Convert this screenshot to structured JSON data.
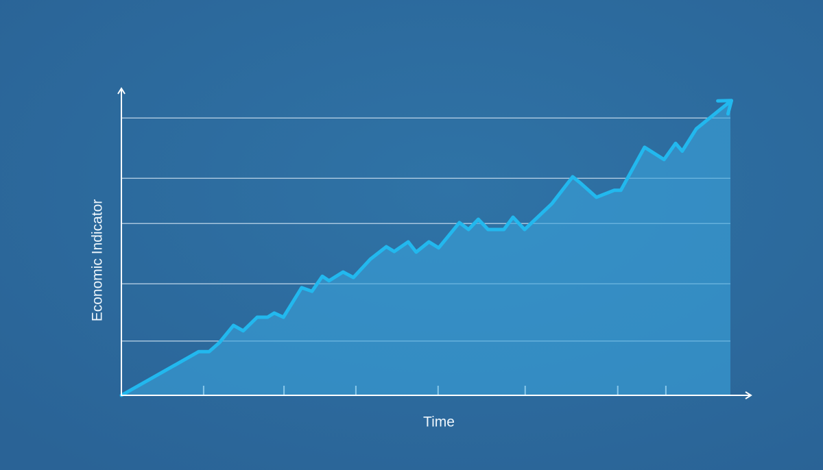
{
  "chart_data": {
    "type": "area",
    "xlabel": "Time",
    "ylabel": "Economic Indicator",
    "x": [
      0,
      12.7,
      14.4,
      16.1,
      18.4,
      20.0,
      22.3,
      24.0,
      25.1,
      26.6,
      29.6,
      31.3,
      33.0,
      34.1,
      36.4,
      38.1,
      40.9,
      43.5,
      44.8,
      47.1,
      48.4,
      50.5,
      52.1,
      55.5,
      57.0,
      58.6,
      60.2,
      62.8,
      64.3,
      66.2,
      70.7,
      74.1,
      75.5,
      78.0,
      80.9,
      82.0,
      85.9,
      89.1,
      91.0,
      92.1,
      94.4,
      98.3,
      100
    ],
    "values": [
      0,
      14.5,
      14.5,
      17.5,
      23.2,
      21.4,
      25.9,
      25.9,
      27.3,
      25.9,
      35.7,
      34.5,
      39.5,
      38.0,
      40.9,
      39.1,
      45.2,
      49.3,
      47.7,
      50.9,
      47.5,
      50.9,
      48.9,
      57.3,
      55.0,
      58.4,
      55.0,
      55.0,
      59.1,
      55.0,
      63.6,
      72.5,
      70.2,
      65.7,
      68.0,
      68.0,
      82.3,
      78.2,
      83.6,
      81.0,
      88.4,
      94.8,
      97.5
    ],
    "color": "#22b8ee",
    "fill_color": "#3aa3dc",
    "xlim": [
      0,
      100
    ],
    "ylim": [
      0,
      100
    ],
    "gridlines": [
      18,
      37,
      57,
      72,
      92
    ],
    "xtick_marks": [
      13.5,
      26.7,
      38.5,
      52,
      66.3,
      81.5,
      89.4
    ],
    "grid": true
  }
}
